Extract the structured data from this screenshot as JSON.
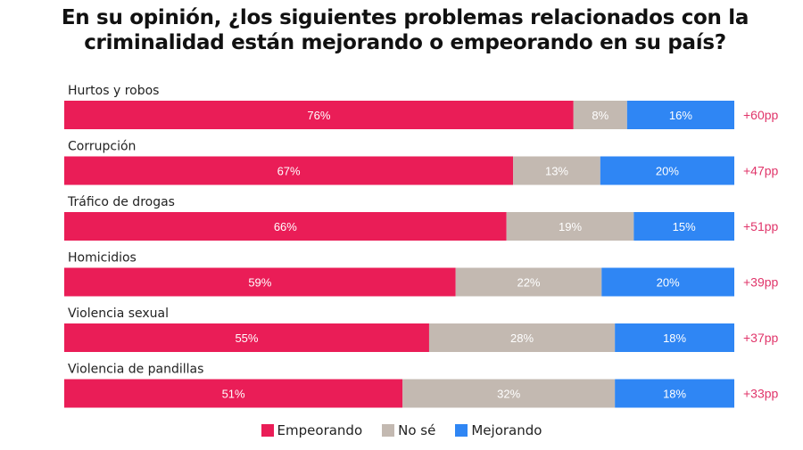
{
  "chart_data": {
    "type": "bar",
    "orientation": "horizontal-stacked",
    "title": "En su opinión, ¿los siguientes problemas relacionados con la criminalidad están mejorando o empeorando en su país?",
    "categories": [
      "Hurtos y robos",
      "Corrupción",
      "Tráfico de drogas",
      "Homicidios",
      "Violencia sexual",
      "Violencia de pandillas"
    ],
    "series": [
      {
        "name": "Empeorando",
        "color": "#ea1d57",
        "values": [
          76,
          67,
          66,
          59,
          55,
          51
        ]
      },
      {
        "name": "No sé",
        "color": "#c3b9b1",
        "values": [
          8,
          13,
          19,
          22,
          28,
          32
        ]
      },
      {
        "name": "Mejorando",
        "color": "#2f86f4",
        "values": [
          16,
          20,
          15,
          20,
          18,
          18
        ]
      }
    ],
    "net_labels": [
      "+60pp",
      "+47pp",
      "+51pp",
      "+39pp",
      "+37pp",
      "+33pp"
    ],
    "net_color": "#e0356a",
    "value_suffix": "%",
    "legend_position": "bottom",
    "grid": false
  }
}
